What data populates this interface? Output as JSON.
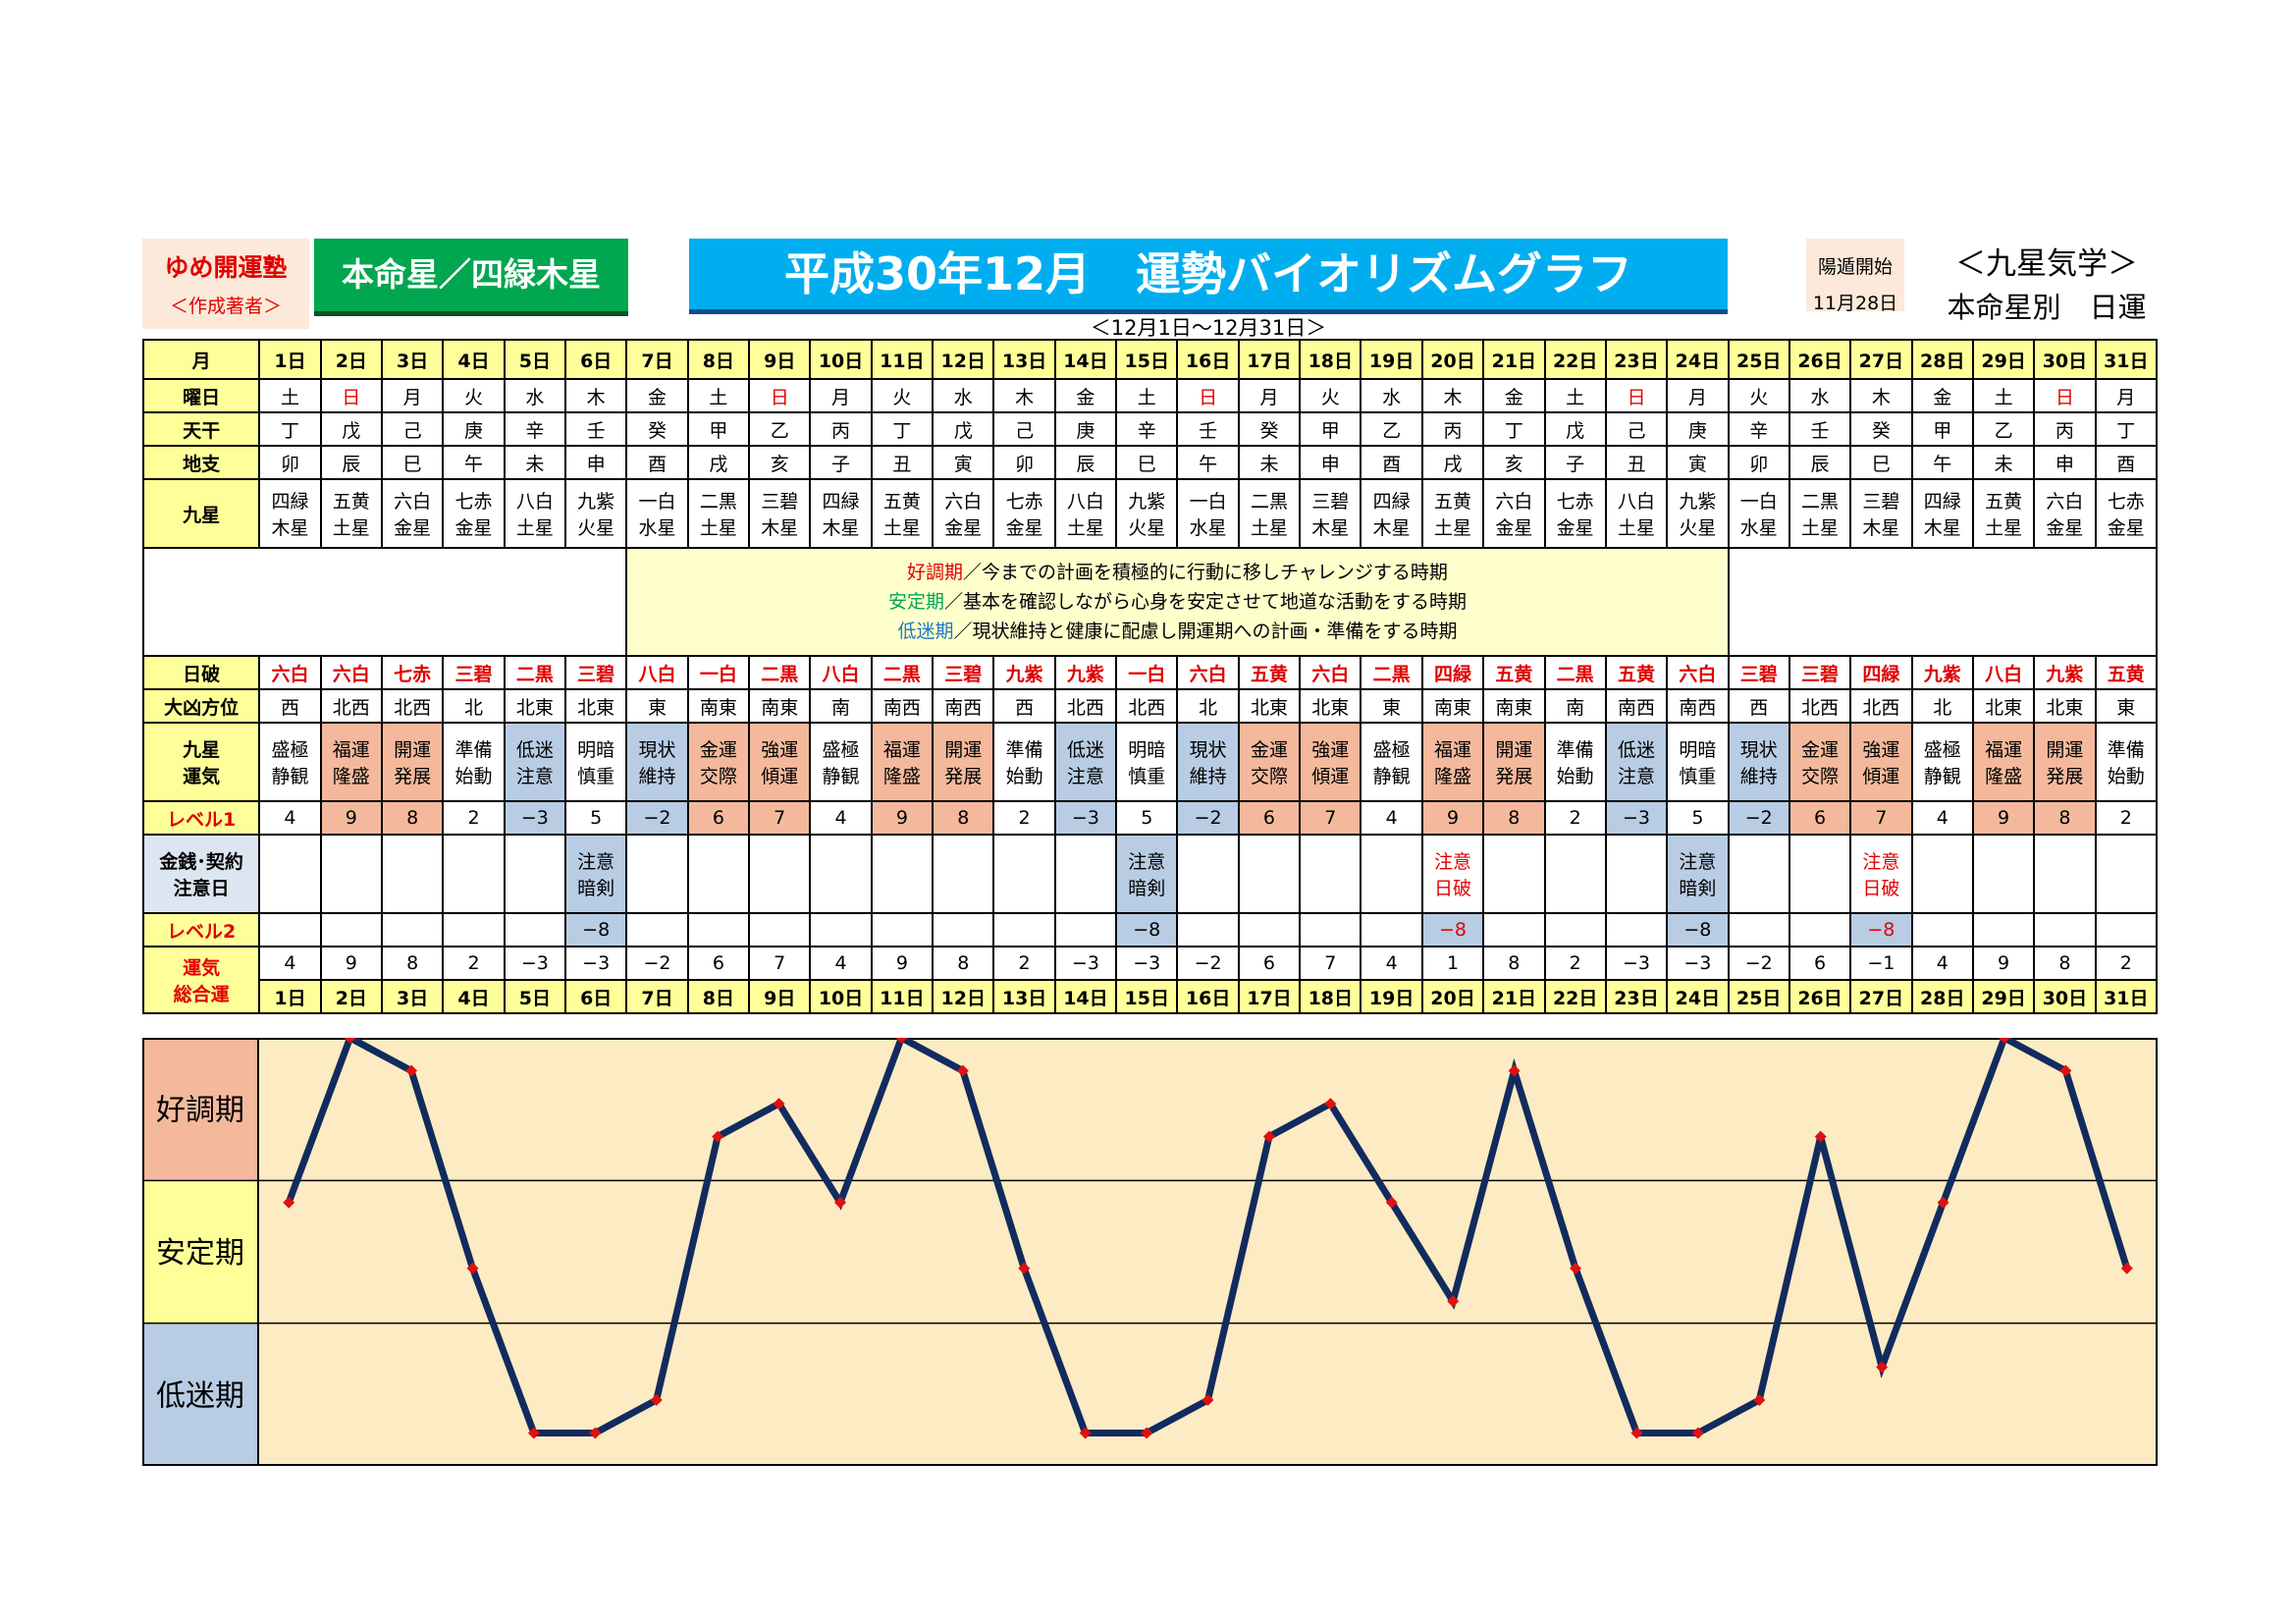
{
  "header": {
    "author_name": "ゆめ開運塾",
    "author_role": "＜作成著者＞",
    "star_badge": "本命星／四緑木星",
    "title": "平成30年12月　運勢バイオリズムグラフ",
    "subtitle": "＜12月1日～12月31日＞",
    "yoton_label": "陽遁開始",
    "yoton_date": "11月28日",
    "kyusei_label": "＜九星気学＞",
    "kyusei_sub": "本命星別　日運"
  },
  "row_labels": {
    "month": "月",
    "weekday": "曜日",
    "tenkan": "天干",
    "chishi": "地支",
    "kyusei": "九星",
    "nippa": "日破",
    "daikyou": "大凶方位",
    "unki": [
      "九星",
      "運気"
    ],
    "level1": "レベル1",
    "money": [
      "金銭･契約",
      "注意日"
    ],
    "level2": "レベル2",
    "total": [
      "運気",
      "総合運"
    ]
  },
  "legend": [
    {
      "key": "好調期",
      "text": "／今までの計画を積極的に行動に移しチャレンジする時期"
    },
    {
      "key": "安定期",
      "text": "／基本を確認しながら心身を安定させて地道な活動をする時期"
    },
    {
      "key": "低迷期",
      "text": "／現状維持と健康に配慮し開運期への計画・準備をする時期"
    }
  ],
  "days": [
    "1日",
    "2日",
    "3日",
    "4日",
    "5日",
    "6日",
    "7日",
    "8日",
    "9日",
    "10日",
    "11日",
    "12日",
    "13日",
    "14日",
    "15日",
    "16日",
    "17日",
    "18日",
    "19日",
    "20日",
    "21日",
    "22日",
    "23日",
    "24日",
    "25日",
    "26日",
    "27日",
    "28日",
    "29日",
    "30日",
    "31日"
  ],
  "weekday": [
    "土",
    "日",
    "月",
    "火",
    "水",
    "木",
    "金",
    "土",
    "日",
    "月",
    "火",
    "水",
    "木",
    "金",
    "土",
    "日",
    "月",
    "火",
    "水",
    "木",
    "金",
    "土",
    "日",
    "月",
    "火",
    "水",
    "木",
    "金",
    "土",
    "日",
    "月"
  ],
  "tenkan": [
    "丁",
    "戊",
    "己",
    "庚",
    "辛",
    "壬",
    "癸",
    "甲",
    "乙",
    "丙",
    "丁",
    "戊",
    "己",
    "庚",
    "辛",
    "壬",
    "癸",
    "甲",
    "乙",
    "丙",
    "丁",
    "戊",
    "己",
    "庚",
    "辛",
    "壬",
    "癸",
    "甲",
    "乙",
    "丙",
    "丁"
  ],
  "chishi": [
    "卯",
    "辰",
    "巳",
    "午",
    "未",
    "申",
    "酉",
    "戌",
    "亥",
    "子",
    "丑",
    "寅",
    "卯",
    "辰",
    "巳",
    "午",
    "未",
    "申",
    "酉",
    "戌",
    "亥",
    "子",
    "丑",
    "寅",
    "卯",
    "辰",
    "巳",
    "午",
    "未",
    "申",
    "酉"
  ],
  "kyusei": [
    [
      "四緑",
      "木星"
    ],
    [
      "五黄",
      "土星"
    ],
    [
      "六白",
      "金星"
    ],
    [
      "七赤",
      "金星"
    ],
    [
      "八白",
      "土星"
    ],
    [
      "九紫",
      "火星"
    ],
    [
      "一白",
      "水星"
    ],
    [
      "二黒",
      "土星"
    ],
    [
      "三碧",
      "木星"
    ],
    [
      "四緑",
      "木星"
    ],
    [
      "五黄",
      "土星"
    ],
    [
      "六白",
      "金星"
    ],
    [
      "七赤",
      "金星"
    ],
    [
      "八白",
      "土星"
    ],
    [
      "九紫",
      "火星"
    ],
    [
      "一白",
      "水星"
    ],
    [
      "二黒",
      "土星"
    ],
    [
      "三碧",
      "木星"
    ],
    [
      "四緑",
      "木星"
    ],
    [
      "五黄",
      "土星"
    ],
    [
      "六白",
      "金星"
    ],
    [
      "七赤",
      "金星"
    ],
    [
      "八白",
      "土星"
    ],
    [
      "九紫",
      "火星"
    ],
    [
      "一白",
      "水星"
    ],
    [
      "二黒",
      "土星"
    ],
    [
      "三碧",
      "木星"
    ],
    [
      "四緑",
      "木星"
    ],
    [
      "五黄",
      "土星"
    ],
    [
      "六白",
      "金星"
    ],
    [
      "七赤",
      "金星"
    ]
  ],
  "nippa": [
    "六白",
    "六白",
    "七赤",
    "三碧",
    "二黒",
    "三碧",
    "八白",
    "一白",
    "二黒",
    "八白",
    "二黒",
    "三碧",
    "九紫",
    "九紫",
    "一白",
    "六白",
    "五黄",
    "六白",
    "二黒",
    "四緑",
    "五黄",
    "二黒",
    "五黄",
    "六白",
    "三碧",
    "三碧",
    "四緑",
    "九紫",
    "八白",
    "九紫",
    "五黄"
  ],
  "daikyou": [
    "西",
    "北西",
    "北西",
    "北",
    "北東",
    "北東",
    "東",
    "南東",
    "南東",
    "南",
    "南西",
    "南西",
    "西",
    "北西",
    "北西",
    "北",
    "北東",
    "北東",
    "東",
    "南東",
    "南東",
    "南",
    "南西",
    "南西",
    "西",
    "北西",
    "北西",
    "北",
    "北東",
    "北東",
    "東"
  ],
  "unki": [
    [
      "盛極",
      "静観"
    ],
    [
      "福運",
      "隆盛"
    ],
    [
      "開運",
      "発展"
    ],
    [
      "準備",
      "始動"
    ],
    [
      "低迷",
      "注意"
    ],
    [
      "明暗",
      "慎重"
    ],
    [
      "現状",
      "維持"
    ],
    [
      "金運",
      "交際"
    ],
    [
      "強運",
      "傾運"
    ],
    [
      "盛極",
      "静観"
    ],
    [
      "福運",
      "隆盛"
    ],
    [
      "開運",
      "発展"
    ],
    [
      "準備",
      "始動"
    ],
    [
      "低迷",
      "注意"
    ],
    [
      "明暗",
      "慎重"
    ],
    [
      "現状",
      "維持"
    ],
    [
      "金運",
      "交際"
    ],
    [
      "強運",
      "傾運"
    ],
    [
      "盛極",
      "静観"
    ],
    [
      "福運",
      "隆盛"
    ],
    [
      "開運",
      "発展"
    ],
    [
      "準備",
      "始動"
    ],
    [
      "低迷",
      "注意"
    ],
    [
      "明暗",
      "慎重"
    ],
    [
      "現状",
      "維持"
    ],
    [
      "金運",
      "交際"
    ],
    [
      "強運",
      "傾運"
    ],
    [
      "盛極",
      "静観"
    ],
    [
      "福運",
      "隆盛"
    ],
    [
      "開運",
      "発展"
    ],
    [
      "準備",
      "始動"
    ]
  ],
  "level1": [
    "4",
    "9",
    "8",
    "2",
    "−3",
    "5",
    "−2",
    "6",
    "7",
    "4",
    "9",
    "8",
    "2",
    "−3",
    "5",
    "−2",
    "6",
    "7",
    "4",
    "9",
    "8",
    "2",
    "−3",
    "5",
    "−2",
    "6",
    "7",
    "4",
    "9",
    "8",
    "2"
  ],
  "money_notes": {
    "6": [
      "注意",
      "暗剣"
    ],
    "15": [
      "注意",
      "暗剣"
    ],
    "20": [
      "注意",
      "日破"
    ],
    "24": [
      "注意",
      "暗剣"
    ],
    "27": [
      "注意",
      "日破"
    ]
  },
  "level2": {
    "6": "−8",
    "15": "−8",
    "20": "−8",
    "24": "−8",
    "27": "−8"
  },
  "total": [
    "4",
    "9",
    "8",
    "2",
    "−3",
    "−3",
    "−2",
    "6",
    "7",
    "4",
    "9",
    "8",
    "2",
    "−3",
    "−3",
    "−2",
    "6",
    "7",
    "4",
    "1",
    "8",
    "2",
    "−3",
    "−3",
    "−2",
    "6",
    "−1",
    "4",
    "9",
    "8",
    "2"
  ],
  "chart_data": {
    "type": "line",
    "x": [
      "1日",
      "2日",
      "3日",
      "4日",
      "5日",
      "6日",
      "7日",
      "8日",
      "9日",
      "10日",
      "11日",
      "12日",
      "13日",
      "14日",
      "15日",
      "16日",
      "17日",
      "18日",
      "19日",
      "20日",
      "21日",
      "22日",
      "23日",
      "24日",
      "25日",
      "26日",
      "27日",
      "28日",
      "29日",
      "30日",
      "31日"
    ],
    "values": [
      4,
      9,
      8,
      2,
      -3,
      -3,
      -2,
      6,
      7,
      4,
      9,
      8,
      2,
      -3,
      -3,
      -2,
      6,
      7,
      4,
      1,
      8,
      2,
      -3,
      -3,
      -2,
      6,
      -1,
      4,
      9,
      8,
      2
    ],
    "bands": [
      "好調期",
      "安定期",
      "低迷期"
    ],
    "band_colors": {
      "好調期": "#f4b99c",
      "安定期": "#ffff99",
      "低迷期": "#b8cce4"
    },
    "plot_bg": "#fdebc3",
    "line_color": "#112b5e",
    "marker_color": "#e01010"
  },
  "colors": {
    "good": "#f4b99c",
    "low": "#b8cce4",
    "label_bg": "#ffff99",
    "red": "#e00000"
  }
}
